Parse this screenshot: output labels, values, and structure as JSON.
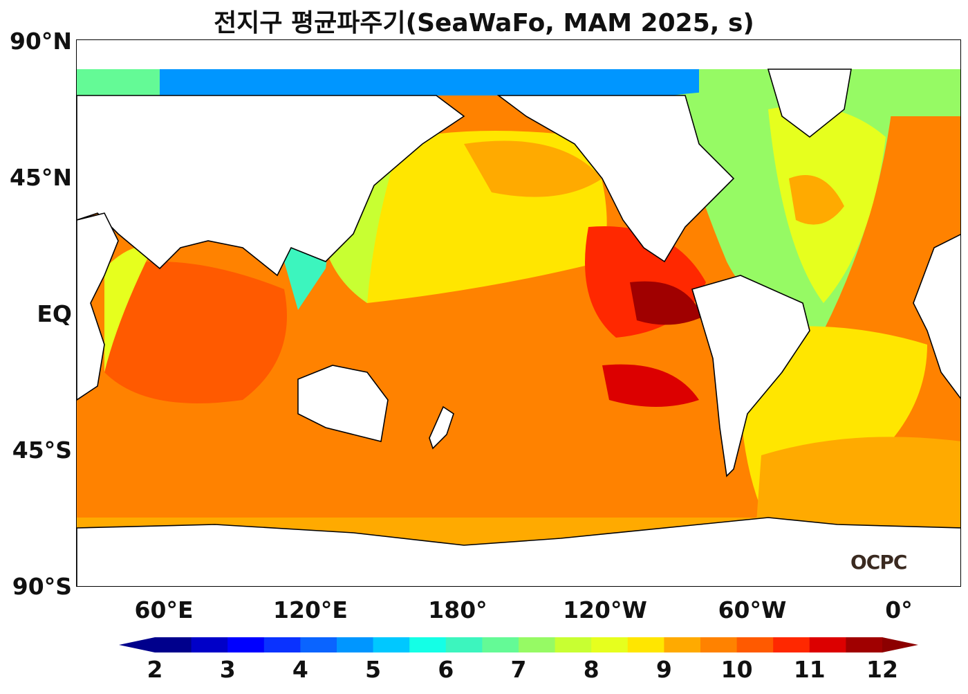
{
  "title": "전지구 평균파주기(SeaWaFo, MAM 2025, s)",
  "lat_labels": [
    "90°N",
    "45°N",
    "EQ",
    "45°S",
    "90°S"
  ],
  "lon_labels": [
    "60°E",
    "120°E",
    "180°",
    "120°W",
    "60°W",
    "0°"
  ],
  "colorbar": {
    "ticks": [
      "2",
      "3",
      "4",
      "5",
      "6",
      "7",
      "8",
      "9",
      "10",
      "11",
      "12"
    ],
    "colors": [
      "#00008c",
      "#0000c8",
      "#0000ff",
      "#0a32ff",
      "#0a64ff",
      "#0096ff",
      "#00c8ff",
      "#14ffe6",
      "#3cf5be",
      "#64fa96",
      "#96fa64",
      "#c8ff32",
      "#e6ff1e",
      "#ffe600",
      "#ffaa00",
      "#ff8200",
      "#ff5a00",
      "#ff2800",
      "#dc0000",
      "#a00000"
    ],
    "extend_min_color": "#00008c",
    "extend_max_color": "#8c0000"
  },
  "logo": "OCPC",
  "land_color": "#ffffff",
  "coast_color": "#000000"
}
